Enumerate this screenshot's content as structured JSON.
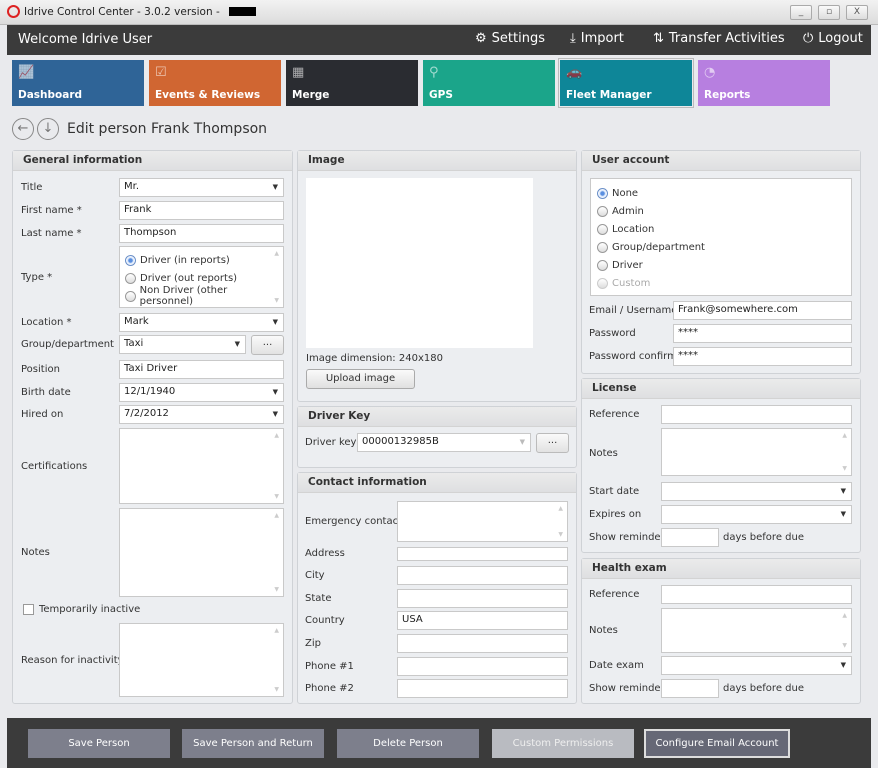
{
  "window": {
    "title": "Idrive Control Center - 3.0.2 version -",
    "minimize": "_",
    "maximize": "▫",
    "close": "X"
  },
  "header": {
    "welcome": "Welcome Idrive User",
    "settings": "Settings",
    "import": "Import",
    "transfer": "Transfer Activities",
    "logout": "Logout"
  },
  "tiles": [
    {
      "label": "Dashboard",
      "color": "#2f6497",
      "icon": "chart-icon"
    },
    {
      "label": "Events & Reviews",
      "color": "#d06632",
      "icon": "clipboard-icon"
    },
    {
      "label": "Merge",
      "color": "#2a2c31",
      "icon": "merge-icon"
    },
    {
      "label": "GPS",
      "color": "#1ba58a",
      "icon": "map-pin-icon"
    },
    {
      "label": "Fleet Manager",
      "color": "#0e8698",
      "icon": "cars-icon"
    },
    {
      "label": "Reports",
      "color": "#b77fe0",
      "icon": "pie-icon"
    }
  ],
  "page_title": "Edit person Frank Thompson",
  "general": {
    "header": "General information",
    "title_label": "Title",
    "title_value": "Mr.",
    "first_label": "First name *",
    "first_value": "Frank",
    "last_label": "Last name *",
    "last_value": "Thompson",
    "type_label": "Type *",
    "type_options": [
      "Driver (in reports)",
      "Driver (out reports)",
      "Non Driver (other personnel)"
    ],
    "location_label": "Location *",
    "location_value": "Mark",
    "group_label": "Group/department",
    "group_value": "Taxi",
    "group_button": "...",
    "position_label": "Position",
    "position_value": "Taxi Driver",
    "birth_label": "Birth date",
    "birth_value": "12/1/1940",
    "hired_label": "Hired on",
    "hired_value": "7/2/2012",
    "cert_label": "Certifications",
    "notes_label": "Notes",
    "inactive_label": "Temporarily inactive",
    "reason_label": "Reason for inactivity"
  },
  "image": {
    "header": "Image",
    "dimension_label": "Image dimension:",
    "dimension_value": "240x180",
    "upload": "Upload image"
  },
  "driver_key": {
    "header": "Driver Key",
    "label": "Driver key",
    "value": "00000132985B",
    "button": "..."
  },
  "contact": {
    "header": "Contact information",
    "emergency": "Emergency contact",
    "address": "Address",
    "city": "City",
    "state": "State",
    "country": "Country",
    "country_value": "USA",
    "zip": "Zip",
    "phone1": "Phone #1",
    "phone2": "Phone #2"
  },
  "user_account": {
    "header": "User account",
    "options": [
      "None",
      "Admin",
      "Location",
      "Group/department",
      "Driver",
      "Custom"
    ],
    "email_label": "Email / Username",
    "email_value": "Frank@somewhere.com",
    "password_label": "Password",
    "password_value": "****",
    "confirm_label": "Password confirm",
    "confirm_value": "****"
  },
  "license": {
    "header": "License",
    "reference": "Reference",
    "notes": "Notes",
    "start": "Start date",
    "expires": "Expires on",
    "reminder": "Show reminder",
    "days": "days before due"
  },
  "health": {
    "header": "Health exam",
    "reference": "Reference",
    "notes": "Notes",
    "date": "Date exam",
    "reminder": "Show reminder",
    "days": "days before due"
  },
  "footer": {
    "save": "Save Person",
    "save_return": "Save Person and Return",
    "delete": "Delete Person",
    "custom": "Custom Permissions",
    "email": "Configure Email Account"
  }
}
